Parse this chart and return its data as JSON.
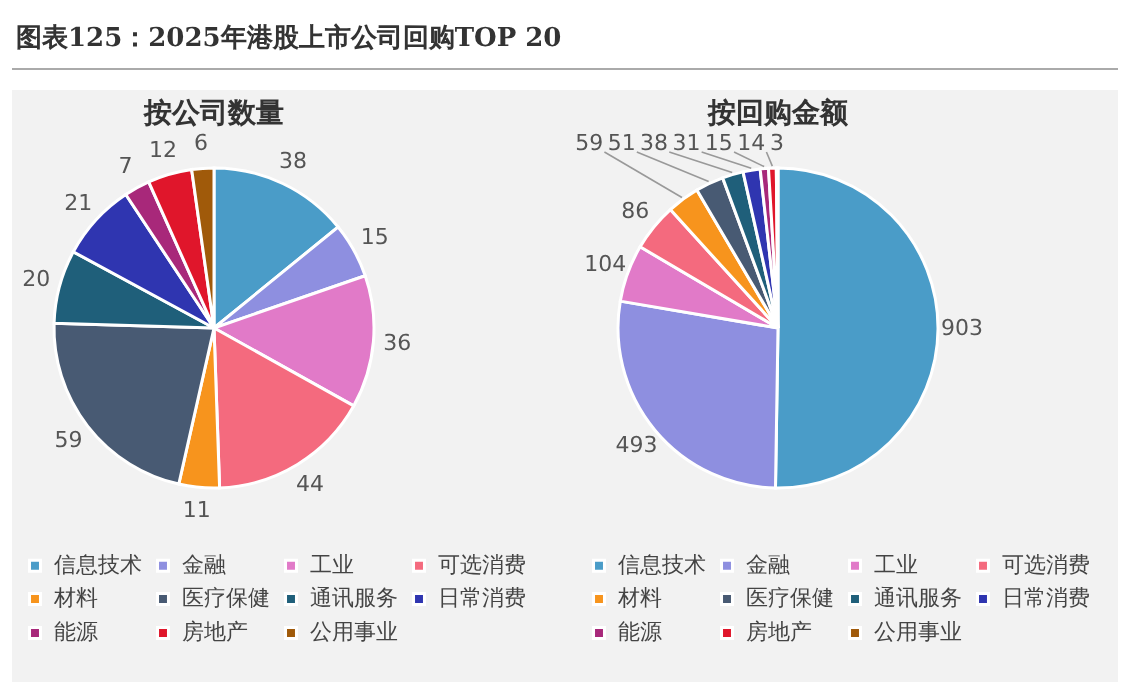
{
  "chart_data": [
    {
      "type": "pie",
      "title": "图表125：2025年港股上市公司回购TOP 20",
      "subtitle": "按公司数量",
      "categories": [
        "信息技术",
        "金融",
        "工业",
        "可选消费",
        "材料",
        "医疗保健",
        "通讯服务",
        "日常消费",
        "能源",
        "房地产",
        "公用事业"
      ],
      "values": [
        38,
        15,
        36,
        44,
        11,
        59,
        20,
        21,
        7,
        12,
        6
      ],
      "colors": [
        "#4a9cc8",
        "#8e8fe0",
        "#e17ac8",
        "#f46a7e",
        "#f7941d",
        "#485a73",
        "#1f5f7a",
        "#2f35b0",
        "#a8287a",
        "#e0162b",
        "#a05a0a"
      ],
      "data_labels": true,
      "legend": "bottom"
    },
    {
      "type": "pie",
      "subtitle": "按回购金额",
      "categories": [
        "信息技术",
        "金融",
        "工业",
        "可选消费",
        "材料",
        "医疗保健",
        "通讯服务",
        "日常消费",
        "能源",
        "房地产",
        "公用事业"
      ],
      "values": [
        903,
        493,
        104,
        86,
        59,
        51,
        38,
        31,
        15,
        14,
        3
      ],
      "colors": [
        "#4a9cc8",
        "#8e8fe0",
        "#e17ac8",
        "#f46a7e",
        "#f7941d",
        "#485a73",
        "#1f5f7a",
        "#2f35b0",
        "#a8287a",
        "#e0162b",
        "#a05a0a"
      ],
      "data_labels": true,
      "legend": "bottom"
    }
  ]
}
